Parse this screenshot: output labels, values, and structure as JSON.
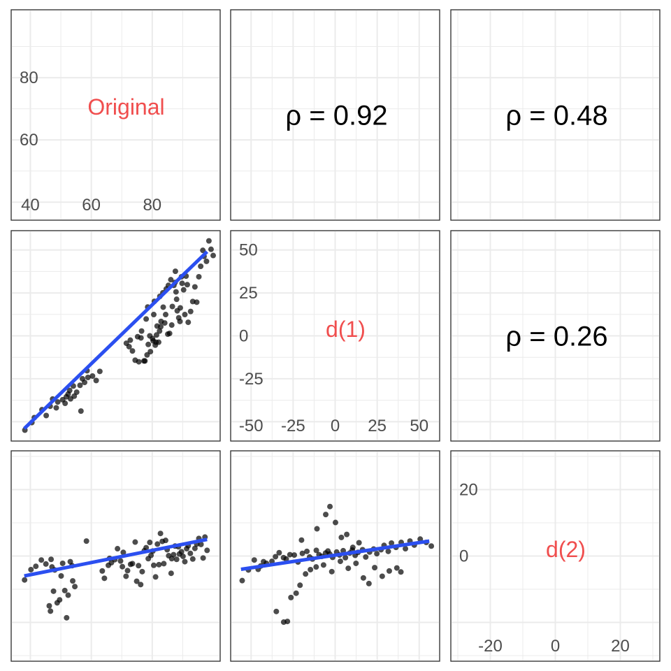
{
  "chart_data": {
    "type": "scatter",
    "layout": "pairs-matrix",
    "variables": [
      "Original",
      "d(1)",
      "d(2)"
    ],
    "correlations": [
      {
        "row": 0,
        "col": 1,
        "label": "ρ = 0.92",
        "value": 0.92
      },
      {
        "row": 0,
        "col": 2,
        "label": "ρ = 0.48",
        "value": 0.48
      },
      {
        "row": 1,
        "col": 2,
        "label": "ρ = 0.26",
        "value": 0.26
      }
    ],
    "diagonal": [
      {
        "var": "Original",
        "label": "Original",
        "range": [
          36,
          100
        ],
        "ticks": [
          40,
          60,
          80
        ],
        "tick_labels": [
          "40",
          "60",
          "80"
        ]
      },
      {
        "var": "d(1)",
        "label": "d(1)",
        "range": [
          -58,
          58
        ],
        "ticks": [
          -50,
          -25,
          0,
          25,
          50
        ],
        "tick_labels": [
          "-50",
          "-25",
          "0",
          "25",
          "50"
        ]
      },
      {
        "var": "d(2)",
        "label": "d(2)",
        "range": [
          -30,
          30
        ],
        "ticks": [
          -20,
          0,
          20
        ],
        "tick_labels": [
          "-20",
          "0",
          "20"
        ]
      }
    ],
    "scatter_panels": [
      {
        "row": 1,
        "col": 0,
        "xvar": "Original",
        "yvar": "d(1)",
        "xlim": [
          36,
          100
        ],
        "ylim": [
          -58,
          58
        ],
        "fit": {
          "x": [
            38,
            98
          ],
          "y": [
            -54,
            49
          ]
        },
        "points": [
          [
            38.2,
            -54.9
          ],
          [
            40.5,
            -50.5
          ],
          [
            41.3,
            -47.6
          ],
          [
            43.8,
            -43.0
          ],
          [
            45.2,
            -46.4
          ],
          [
            46.5,
            -41.0
          ],
          [
            47.3,
            -36.8
          ],
          [
            48.5,
            -41.9
          ],
          [
            49.0,
            -38.5
          ],
          [
            50.6,
            -37.2
          ],
          [
            51.4,
            -39.3
          ],
          [
            51.8,
            -35.5
          ],
          [
            52.4,
            -33.9
          ],
          [
            52.9,
            -31.8
          ],
          [
            53.2,
            -36.7
          ],
          [
            54.1,
            -29.2
          ],
          [
            54.4,
            -35.1
          ],
          [
            55.2,
            -32.8
          ],
          [
            56.3,
            -28.8
          ],
          [
            56.6,
            -43.8
          ],
          [
            57.1,
            -25.0
          ],
          [
            57.8,
            -27.1
          ],
          [
            58.6,
            -20.3
          ],
          [
            58.9,
            -24.2
          ],
          [
            60.4,
            -23.4
          ],
          [
            61.6,
            -26.0
          ],
          [
            62.8,
            -20.7
          ],
          [
            71.5,
            -4.3
          ],
          [
            72.4,
            -6.3
          ],
          [
            72.8,
            -2.5
          ],
          [
            73.5,
            -8.8
          ],
          [
            74.4,
            -14.2
          ],
          [
            75.2,
            -0.5
          ],
          [
            75.6,
            -15.1
          ],
          [
            76.3,
            -1.2
          ],
          [
            76.5,
            2.8
          ],
          [
            77.3,
            -14.6
          ],
          [
            77.6,
            -14.6
          ],
          [
            78.0,
            9.8
          ],
          [
            78.3,
            -11.1
          ],
          [
            78.5,
            16.8
          ],
          [
            78.7,
            -5.0
          ],
          [
            79.2,
            0.0
          ],
          [
            79.4,
            -9.2
          ],
          [
            80.1,
            -1.6
          ],
          [
            80.3,
            -2.9
          ],
          [
            80.5,
            12.4
          ],
          [
            80.7,
            20.1
          ],
          [
            81.0,
            -5.4
          ],
          [
            81.2,
            -3.7
          ],
          [
            81.4,
            0.5
          ],
          [
            81.6,
            5.7
          ],
          [
            82.1,
            -3.7
          ],
          [
            82.4,
            2.8
          ],
          [
            82.5,
            23.0
          ],
          [
            82.8,
            5.3
          ],
          [
            82.9,
            8.4
          ],
          [
            83.5,
            25.1
          ],
          [
            83.6,
            16.7
          ],
          [
            84.1,
            7.5
          ],
          [
            84.4,
            12.4
          ],
          [
            84.6,
            27.3
          ],
          [
            85.1,
            1.0
          ],
          [
            85.3,
            29.4
          ],
          [
            85.7,
            1.4
          ],
          [
            86.1,
            32.7
          ],
          [
            86.4,
            6.3
          ],
          [
            86.6,
            17.1
          ],
          [
            87.1,
            29.4
          ],
          [
            87.5,
            31.1
          ],
          [
            87.6,
            37.6
          ],
          [
            87.8,
            25.6
          ],
          [
            88.0,
            21.3
          ],
          [
            88.2,
            14.6
          ],
          [
            88.7,
            10.5
          ],
          [
            89.1,
            8.4
          ],
          [
            89.2,
            16.3
          ],
          [
            89.6,
            34.4
          ],
          [
            89.8,
            30.6
          ],
          [
            90.3,
            26.8
          ],
          [
            90.7,
            12.4
          ],
          [
            91.1,
            34.8
          ],
          [
            91.5,
            29.8
          ],
          [
            91.8,
            7.9
          ],
          [
            92.6,
            14.2
          ],
          [
            93.3,
            20.0
          ],
          [
            94.0,
            28.5
          ],
          [
            94.6,
            19.6
          ],
          [
            95.3,
            34.4
          ],
          [
            95.9,
            40.5
          ],
          [
            96.6,
            49.8
          ],
          [
            97.0,
            46.3
          ],
          [
            97.8,
            43.4
          ],
          [
            98.6,
            55.3
          ],
          [
            99.3,
            50.4
          ],
          [
            100.0,
            46.8
          ]
        ]
      },
      {
        "row": 2,
        "col": 0,
        "xvar": "Original",
        "yvar": "d(2)",
        "xlim": [
          36,
          100
        ],
        "ylim": [
          -30,
          30
        ],
        "fit": {
          "x": [
            38,
            98
          ],
          "y": [
            -6,
            5
          ]
        },
        "points": [
          [
            38.1,
            -7.2
          ],
          [
            40.2,
            -4.1
          ],
          [
            41.8,
            -3.1
          ],
          [
            43.6,
            -1.2
          ],
          [
            45.1,
            -2.4
          ],
          [
            46.2,
            -15.0
          ],
          [
            46.6,
            -16.6
          ],
          [
            46.8,
            -1.0
          ],
          [
            47.1,
            -3.3
          ],
          [
            47.6,
            -10.6
          ],
          [
            48.0,
            -4.2
          ],
          [
            48.8,
            -14.1
          ],
          [
            49.6,
            -13.2
          ],
          [
            50.1,
            -6.0
          ],
          [
            50.6,
            -2.2
          ],
          [
            51.3,
            -10.4
          ],
          [
            51.9,
            -18.6
          ],
          [
            52.4,
            -11.8
          ],
          [
            53.1,
            -1.7
          ],
          [
            53.9,
            -7.5
          ],
          [
            53.7,
            -2.9
          ],
          [
            54.6,
            -9.2
          ],
          [
            58.4,
            4.5
          ],
          [
            63.6,
            -4.5
          ],
          [
            64.3,
            -6.7
          ],
          [
            65.6,
            -2.8
          ],
          [
            66.0,
            -0.7
          ],
          [
            66.6,
            -2.0
          ],
          [
            67.7,
            -1.1
          ],
          [
            68.6,
            2.2
          ],
          [
            69.6,
            -1.5
          ],
          [
            70.2,
            -3.2
          ],
          [
            70.5,
            1.1
          ],
          [
            71.4,
            -6.1
          ],
          [
            71.9,
            -4.4
          ],
          [
            72.9,
            -2.5
          ],
          [
            73.5,
            -2.3
          ],
          [
            74.4,
            4.2
          ],
          [
            74.9,
            -7.6
          ],
          [
            75.5,
            -2.9
          ],
          [
            76.2,
            -8.6
          ],
          [
            76.7,
            -4.7
          ],
          [
            77.4,
            1.6
          ],
          [
            78.0,
            2.5
          ],
          [
            78.7,
            -0.8
          ],
          [
            79.2,
            4.1
          ],
          [
            79.6,
            0.2
          ],
          [
            80.2,
            1.5
          ],
          [
            80.5,
            -2.8
          ],
          [
            81.1,
            -6.3
          ],
          [
            81.7,
            3.6
          ],
          [
            82.2,
            -2.6
          ],
          [
            82.7,
            6.8
          ],
          [
            83.3,
            4.4
          ],
          [
            83.8,
            -2.3
          ],
          [
            84.4,
            4.7
          ],
          [
            84.9,
            1.9
          ],
          [
            85.4,
            0.1
          ],
          [
            86.2,
            -5.2
          ],
          [
            86.4,
            -0.8
          ],
          [
            87.0,
            0.4
          ],
          [
            87.5,
            3.0
          ],
          [
            88.0,
            -1.0
          ],
          [
            88.6,
            2.8
          ],
          [
            88.9,
            0.6
          ],
          [
            89.6,
            1.3
          ],
          [
            90.1,
            -0.1
          ],
          [
            90.7,
            -1.7
          ],
          [
            91.3,
            2.2
          ],
          [
            91.8,
            3.1
          ],
          [
            92.5,
            0.8
          ],
          [
            93.3,
            -0.9
          ],
          [
            94.0,
            2.3
          ],
          [
            94.6,
            3.6
          ],
          [
            95.3,
            5.3
          ],
          [
            96.0,
            3.5
          ],
          [
            96.7,
            -0.6
          ],
          [
            97.3,
            5.7
          ],
          [
            98.0,
            1.7
          ]
        ]
      },
      {
        "row": 2,
        "col": 1,
        "xvar": "d(1)",
        "yvar": "d(2)",
        "xlim": [
          -58,
          58
        ],
        "ylim": [
          -30,
          30
        ],
        "fit": {
          "x": [
            -56,
            56
          ],
          "y": [
            -4,
            4.5
          ]
        },
        "points": [
          [
            -55.3,
            -7.4
          ],
          [
            -51.6,
            -4.2
          ],
          [
            -48.1,
            -1.2
          ],
          [
            -45.8,
            -4.0
          ],
          [
            -44.3,
            -3.0
          ],
          [
            -42.6,
            -1.7
          ],
          [
            -40.9,
            -2.2
          ],
          [
            -37.6,
            -1.6
          ],
          [
            -35.5,
            -0.2
          ],
          [
            -33.3,
            1.0
          ],
          [
            -30.7,
            -0.5
          ],
          [
            -29.1,
            -0.9
          ],
          [
            -26.9,
            0.4
          ],
          [
            -24.3,
            0.3
          ],
          [
            -22.1,
            -1.8
          ],
          [
            -19.5,
            0.8
          ],
          [
            -16.8,
            1.4
          ],
          [
            -15.2,
            -0.3
          ],
          [
            -13.5,
            -0.9
          ],
          [
            -11.2,
            1.7
          ],
          [
            -9.6,
            0.4
          ],
          [
            -7.9,
            -0.1
          ],
          [
            -5.7,
            0.9
          ],
          [
            -4.3,
            1.5
          ],
          [
            -3.2,
            0.6
          ],
          [
            -1.5,
            -0.4
          ],
          [
            0.9,
            1.2
          ],
          [
            2.6,
            0.3
          ],
          [
            4.8,
            1.6
          ],
          [
            6.1,
            -0.5
          ],
          [
            8.7,
            0.9
          ],
          [
            10.2,
            1.8
          ],
          [
            11.9,
            0.2
          ],
          [
            13.6,
            1.1
          ],
          [
            16.3,
            1.9
          ],
          [
            18.2,
            -0.3
          ],
          [
            20.5,
            1.2
          ],
          [
            22.9,
            2.1
          ],
          [
            24.8,
            0.7
          ],
          [
            27.3,
            1.9
          ],
          [
            29.1,
            3.2
          ],
          [
            31.6,
            1.4
          ],
          [
            33.5,
            3.9
          ],
          [
            36.2,
            2.6
          ],
          [
            39.3,
            4.1
          ],
          [
            41.8,
            2.2
          ],
          [
            44.5,
            4.5
          ],
          [
            47.1,
            3.3
          ],
          [
            50.6,
            5.1
          ],
          [
            54.2,
            4.1
          ],
          [
            57.2,
            3.0
          ],
          [
            -35.0,
            -16.7
          ],
          [
            -30.6,
            -19.9
          ],
          [
            -28.4,
            -19.7
          ],
          [
            -26.3,
            -12.5
          ],
          [
            -23.2,
            -11.2
          ],
          [
            -20.9,
            -8.8
          ],
          [
            -17.6,
            -5.4
          ],
          [
            -14.7,
            -4.1
          ],
          [
            -11.3,
            -3.3
          ],
          [
            -6.9,
            -2.7
          ],
          [
            -2.0,
            -4.7
          ],
          [
            3.1,
            -1.6
          ],
          [
            7.8,
            -3.7
          ],
          [
            12.4,
            -2.2
          ],
          [
            16.8,
            -6.6
          ],
          [
            20.1,
            -8.3
          ],
          [
            23.5,
            -3.5
          ],
          [
            28.0,
            -6.1
          ],
          [
            32.2,
            -4.5
          ],
          [
            36.7,
            -3.6
          ],
          [
            39.1,
            -4.8
          ],
          [
            -20.0,
            4.8
          ],
          [
            -10.8,
            8.2
          ],
          [
            -5.6,
            12.5
          ],
          [
            -3.1,
            14.9
          ],
          [
            0.2,
            10.1
          ],
          [
            3.7,
            5.6
          ],
          [
            6.9,
            6.5
          ],
          [
            10.5,
            2.6
          ],
          [
            14.2,
            4.0
          ]
        ]
      }
    ]
  }
}
